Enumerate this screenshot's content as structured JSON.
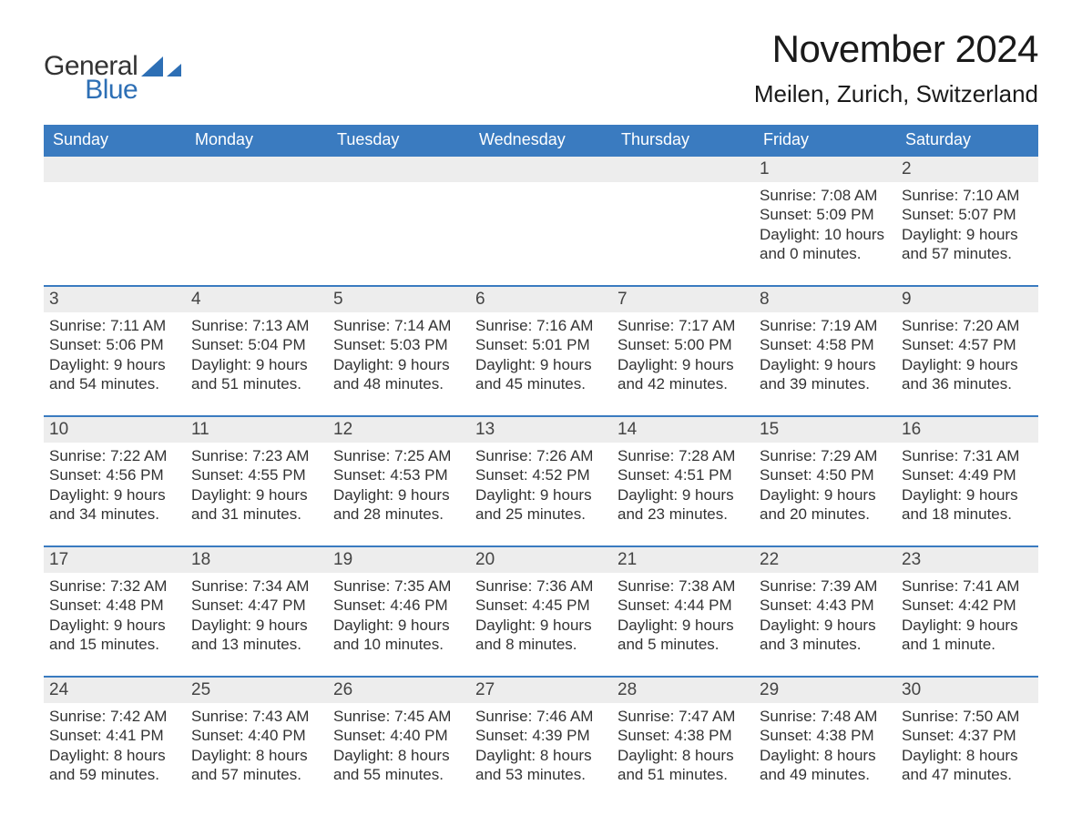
{
  "brand": {
    "text1": "General",
    "text2": "Blue",
    "logo_fill": "#2d6fb5"
  },
  "title": {
    "month_year": "November 2024",
    "location": "Meilen, Zurich, Switzerland"
  },
  "theme": {
    "header_bg": "#3a7bc0",
    "header_text": "#ffffff",
    "band_bg": "#ededed",
    "border_color": "#3a7bc0",
    "body_text": "#333333",
    "background": "#ffffff"
  },
  "calendar": {
    "days_of_week": [
      "Sunday",
      "Monday",
      "Tuesday",
      "Wednesday",
      "Thursday",
      "Friday",
      "Saturday"
    ],
    "leading_blanks": 5,
    "days": [
      {
        "n": "1",
        "sunrise": "Sunrise: 7:08 AM",
        "sunset": "Sunset: 5:09 PM",
        "daylight1": "Daylight: 10 hours",
        "daylight2": "and 0 minutes."
      },
      {
        "n": "2",
        "sunrise": "Sunrise: 7:10 AM",
        "sunset": "Sunset: 5:07 PM",
        "daylight1": "Daylight: 9 hours",
        "daylight2": "and 57 minutes."
      },
      {
        "n": "3",
        "sunrise": "Sunrise: 7:11 AM",
        "sunset": "Sunset: 5:06 PM",
        "daylight1": "Daylight: 9 hours",
        "daylight2": "and 54 minutes."
      },
      {
        "n": "4",
        "sunrise": "Sunrise: 7:13 AM",
        "sunset": "Sunset: 5:04 PM",
        "daylight1": "Daylight: 9 hours",
        "daylight2": "and 51 minutes."
      },
      {
        "n": "5",
        "sunrise": "Sunrise: 7:14 AM",
        "sunset": "Sunset: 5:03 PM",
        "daylight1": "Daylight: 9 hours",
        "daylight2": "and 48 minutes."
      },
      {
        "n": "6",
        "sunrise": "Sunrise: 7:16 AM",
        "sunset": "Sunset: 5:01 PM",
        "daylight1": "Daylight: 9 hours",
        "daylight2": "and 45 minutes."
      },
      {
        "n": "7",
        "sunrise": "Sunrise: 7:17 AM",
        "sunset": "Sunset: 5:00 PM",
        "daylight1": "Daylight: 9 hours",
        "daylight2": "and 42 minutes."
      },
      {
        "n": "8",
        "sunrise": "Sunrise: 7:19 AM",
        "sunset": "Sunset: 4:58 PM",
        "daylight1": "Daylight: 9 hours",
        "daylight2": "and 39 minutes."
      },
      {
        "n": "9",
        "sunrise": "Sunrise: 7:20 AM",
        "sunset": "Sunset: 4:57 PM",
        "daylight1": "Daylight: 9 hours",
        "daylight2": "and 36 minutes."
      },
      {
        "n": "10",
        "sunrise": "Sunrise: 7:22 AM",
        "sunset": "Sunset: 4:56 PM",
        "daylight1": "Daylight: 9 hours",
        "daylight2": "and 34 minutes."
      },
      {
        "n": "11",
        "sunrise": "Sunrise: 7:23 AM",
        "sunset": "Sunset: 4:55 PM",
        "daylight1": "Daylight: 9 hours",
        "daylight2": "and 31 minutes."
      },
      {
        "n": "12",
        "sunrise": "Sunrise: 7:25 AM",
        "sunset": "Sunset: 4:53 PM",
        "daylight1": "Daylight: 9 hours",
        "daylight2": "and 28 minutes."
      },
      {
        "n": "13",
        "sunrise": "Sunrise: 7:26 AM",
        "sunset": "Sunset: 4:52 PM",
        "daylight1": "Daylight: 9 hours",
        "daylight2": "and 25 minutes."
      },
      {
        "n": "14",
        "sunrise": "Sunrise: 7:28 AM",
        "sunset": "Sunset: 4:51 PM",
        "daylight1": "Daylight: 9 hours",
        "daylight2": "and 23 minutes."
      },
      {
        "n": "15",
        "sunrise": "Sunrise: 7:29 AM",
        "sunset": "Sunset: 4:50 PM",
        "daylight1": "Daylight: 9 hours",
        "daylight2": "and 20 minutes."
      },
      {
        "n": "16",
        "sunrise": "Sunrise: 7:31 AM",
        "sunset": "Sunset: 4:49 PM",
        "daylight1": "Daylight: 9 hours",
        "daylight2": "and 18 minutes."
      },
      {
        "n": "17",
        "sunrise": "Sunrise: 7:32 AM",
        "sunset": "Sunset: 4:48 PM",
        "daylight1": "Daylight: 9 hours",
        "daylight2": "and 15 minutes."
      },
      {
        "n": "18",
        "sunrise": "Sunrise: 7:34 AM",
        "sunset": "Sunset: 4:47 PM",
        "daylight1": "Daylight: 9 hours",
        "daylight2": "and 13 minutes."
      },
      {
        "n": "19",
        "sunrise": "Sunrise: 7:35 AM",
        "sunset": "Sunset: 4:46 PM",
        "daylight1": "Daylight: 9 hours",
        "daylight2": "and 10 minutes."
      },
      {
        "n": "20",
        "sunrise": "Sunrise: 7:36 AM",
        "sunset": "Sunset: 4:45 PM",
        "daylight1": "Daylight: 9 hours",
        "daylight2": "and 8 minutes."
      },
      {
        "n": "21",
        "sunrise": "Sunrise: 7:38 AM",
        "sunset": "Sunset: 4:44 PM",
        "daylight1": "Daylight: 9 hours",
        "daylight2": "and 5 minutes."
      },
      {
        "n": "22",
        "sunrise": "Sunrise: 7:39 AM",
        "sunset": "Sunset: 4:43 PM",
        "daylight1": "Daylight: 9 hours",
        "daylight2": "and 3 minutes."
      },
      {
        "n": "23",
        "sunrise": "Sunrise: 7:41 AM",
        "sunset": "Sunset: 4:42 PM",
        "daylight1": "Daylight: 9 hours",
        "daylight2": "and 1 minute."
      },
      {
        "n": "24",
        "sunrise": "Sunrise: 7:42 AM",
        "sunset": "Sunset: 4:41 PM",
        "daylight1": "Daylight: 8 hours",
        "daylight2": "and 59 minutes."
      },
      {
        "n": "25",
        "sunrise": "Sunrise: 7:43 AM",
        "sunset": "Sunset: 4:40 PM",
        "daylight1": "Daylight: 8 hours",
        "daylight2": "and 57 minutes."
      },
      {
        "n": "26",
        "sunrise": "Sunrise: 7:45 AM",
        "sunset": "Sunset: 4:40 PM",
        "daylight1": "Daylight: 8 hours",
        "daylight2": "and 55 minutes."
      },
      {
        "n": "27",
        "sunrise": "Sunrise: 7:46 AM",
        "sunset": "Sunset: 4:39 PM",
        "daylight1": "Daylight: 8 hours",
        "daylight2": "and 53 minutes."
      },
      {
        "n": "28",
        "sunrise": "Sunrise: 7:47 AM",
        "sunset": "Sunset: 4:38 PM",
        "daylight1": "Daylight: 8 hours",
        "daylight2": "and 51 minutes."
      },
      {
        "n": "29",
        "sunrise": "Sunrise: 7:48 AM",
        "sunset": "Sunset: 4:38 PM",
        "daylight1": "Daylight: 8 hours",
        "daylight2": "and 49 minutes."
      },
      {
        "n": "30",
        "sunrise": "Sunrise: 7:50 AM",
        "sunset": "Sunset: 4:37 PM",
        "daylight1": "Daylight: 8 hours",
        "daylight2": "and 47 minutes."
      }
    ]
  }
}
